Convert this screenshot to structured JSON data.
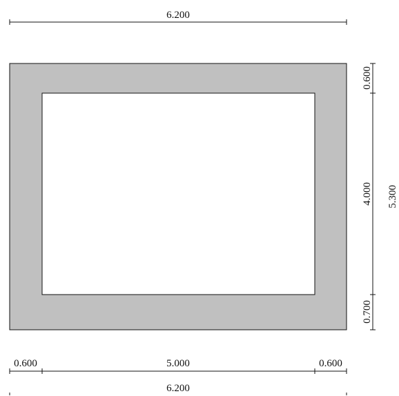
{
  "drawing": {
    "colors": {
      "section_fill": "#c0c0c0",
      "opening_fill": "#ffffff",
      "line": "#111111"
    },
    "dimensions": {
      "top_overall": "6.200",
      "bottom_left_wall": "0.600",
      "bottom_opening": "5.000",
      "bottom_right_wall": "0.600",
      "bottom_overall": "6.200",
      "right_top_wall": "0.600",
      "right_opening": "4.000",
      "right_bottom_wall": "0.700",
      "right_overall": "5.300"
    }
  }
}
